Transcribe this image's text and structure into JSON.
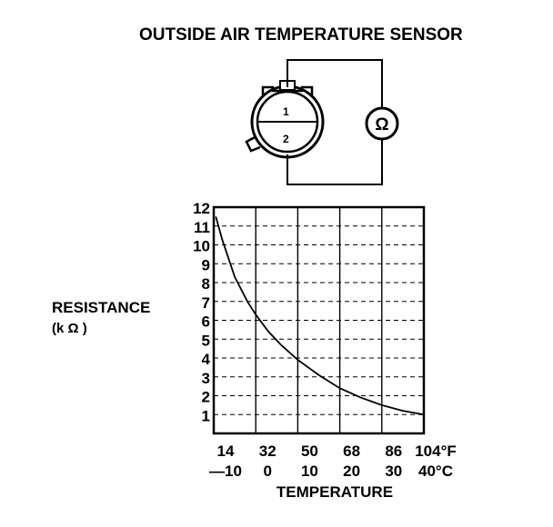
{
  "title": "OUTSIDE AIR TEMPERATURE SENSOR",
  "connector": {
    "terminal_1": "1",
    "terminal_2": "2",
    "meter_symbol": "Ω",
    "meter_icon": "ohmmeter-icon"
  },
  "chart_data": {
    "type": "line",
    "ylabel_line1": "RESISTANCE",
    "ylabel_line2": "(k Ω )",
    "xlabel": "TEMPERATURE",
    "x_ticks_f": [
      "14",
      "32",
      "50",
      "68",
      "86",
      "104°F"
    ],
    "x_ticks_c": [
      "—10",
      "0",
      "10",
      "20",
      "30",
      "40°C"
    ],
    "y_ticks": [
      "12",
      "11",
      "10",
      "9",
      "8",
      "7",
      "6",
      "5",
      "4",
      "3",
      "2",
      "1"
    ],
    "xlim": [
      -10,
      40
    ],
    "ylim": [
      0,
      12
    ],
    "grid": true,
    "series": [
      {
        "x": [
          -9.5,
          -8,
          -5,
          -2,
          0,
          3,
          6,
          10,
          15,
          20,
          25,
          30,
          35,
          40
        ],
        "y": [
          11.5,
          10.3,
          8.3,
          7.0,
          6.3,
          5.4,
          4.7,
          3.9,
          3.1,
          2.4,
          1.9,
          1.5,
          1.2,
          1.0
        ]
      }
    ]
  }
}
